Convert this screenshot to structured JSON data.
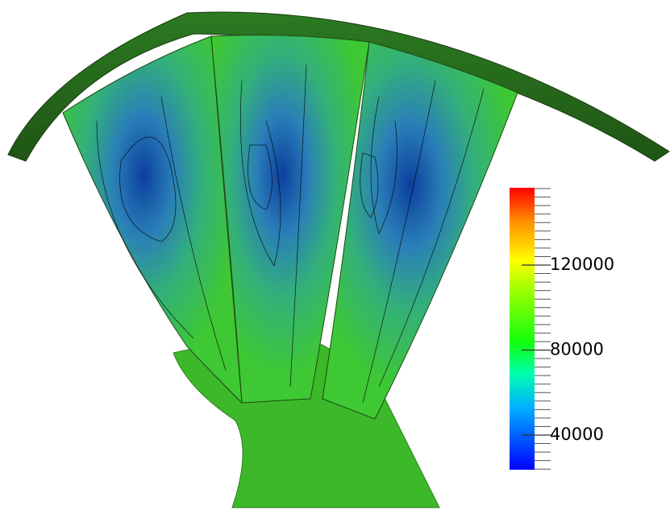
{
  "colorbar": {
    "lim": [
      23700,
      156400
    ],
    "ticks": [
      40000,
      80000,
      120000
    ]
  }
}
